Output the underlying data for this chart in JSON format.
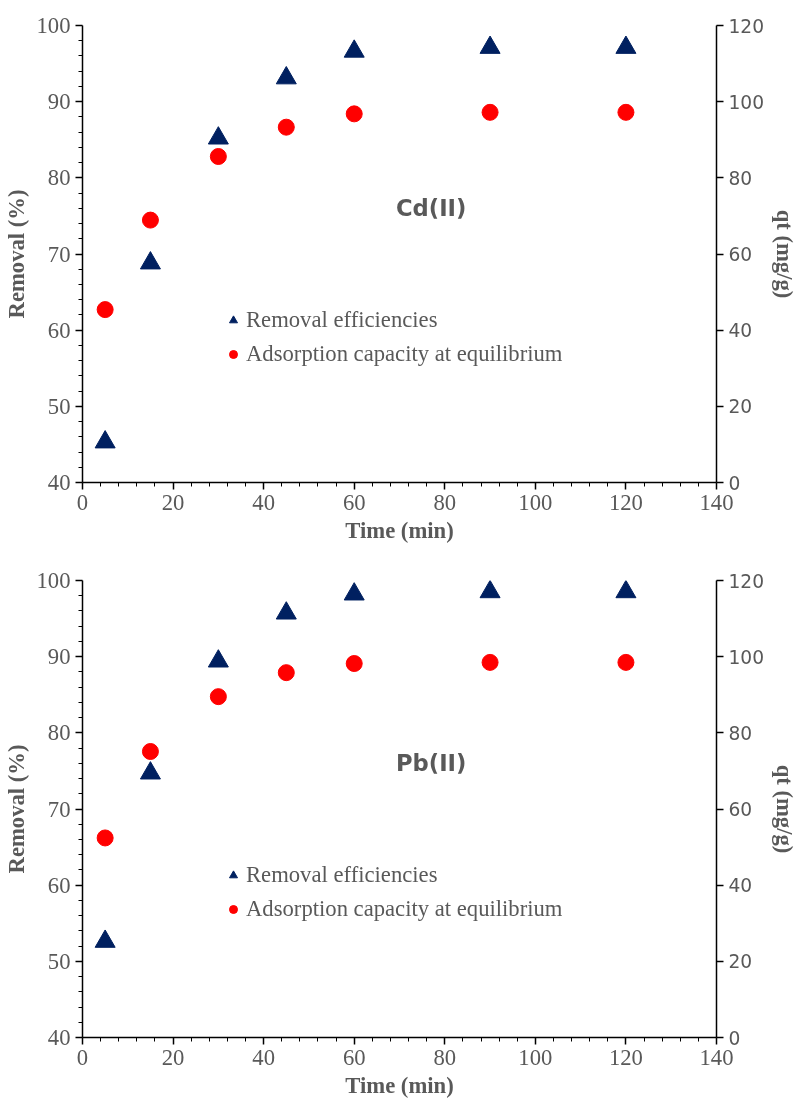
{
  "chart_data": [
    {
      "type": "scatter",
      "title": "Cd(II)",
      "xlabel": "Time (min)",
      "ylabel": "Removal (%)",
      "y2label": "qt (mg/g)",
      "x": [
        5,
        15,
        30,
        45,
        60,
        90,
        120
      ],
      "xlim": [
        0,
        140
      ],
      "xticks": [
        0,
        20,
        40,
        60,
        80,
        100,
        120,
        140
      ],
      "ylim": [
        40,
        100
      ],
      "yticks": [
        40,
        50,
        60,
        70,
        80,
        90,
        100
      ],
      "y2lim": [
        0,
        120
      ],
      "y2ticks": [
        0,
        20,
        40,
        60,
        80,
        100,
        120
      ],
      "grid": false,
      "legend": "center",
      "series": [
        {
          "name": "Removal efficiencies",
          "color": "#002060",
          "marker": "triangle",
          "values": [
            45.3,
            68.8,
            85.2,
            93.1,
            96.6,
            97.1,
            97.1
          ]
        },
        {
          "name": "Adsorption capacity at equilibrium",
          "color": "#ff0000",
          "marker": "circle",
          "axis": "y2",
          "values": [
            45.4,
            68.9,
            85.6,
            93.3,
            96.8,
            97.2,
            97.2
          ]
        }
      ]
    },
    {
      "type": "scatter",
      "title": "Pb(II)",
      "xlabel": "Time (min)",
      "ylabel": "Removal (%)",
      "y2label": "qt (mg/g)",
      "x": [
        5,
        15,
        30,
        45,
        60,
        90,
        120
      ],
      "xlim": [
        0,
        140
      ],
      "xticks": [
        0,
        20,
        40,
        60,
        80,
        100,
        120,
        140
      ],
      "ylim": [
        40,
        100
      ],
      "yticks": [
        40,
        50,
        60,
        70,
        80,
        90,
        100
      ],
      "y2lim": [
        0,
        120
      ],
      "y2ticks": [
        0,
        20,
        40,
        60,
        80,
        100,
        120
      ],
      "grid": false,
      "legend": "center",
      "series": [
        {
          "name": "Removal efficiencies",
          "color": "#002060",
          "marker": "triangle",
          "values": [
            52.6,
            74.7,
            89.4,
            95.7,
            98.2,
            98.5,
            98.5
          ]
        },
        {
          "name": "Adsorption capacity at equilibrium",
          "color": "#ff0000",
          "marker": "circle",
          "axis": "y2",
          "values": [
            52.4,
            75.1,
            89.5,
            95.8,
            98.2,
            98.5,
            98.5
          ]
        }
      ]
    }
  ]
}
